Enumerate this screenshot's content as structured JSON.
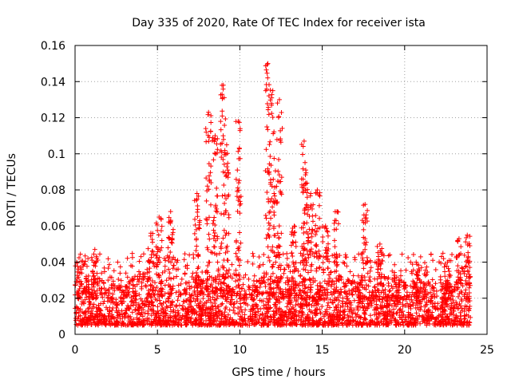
{
  "chart_data": {
    "type": "scatter",
    "title": "Day 335 of 2020, Rate Of TEC Index for receiver ista",
    "xlabel": "GPS time / hours",
    "ylabel": "ROTI / TECUs",
    "xlim": [
      0,
      25
    ],
    "ylim": [
      0,
      0.16
    ],
    "xticks": [
      0,
      5,
      10,
      15,
      20,
      25
    ],
    "xtick_labels": [
      "0",
      "5",
      "10",
      "15",
      "20",
      "25"
    ],
    "yticks": [
      0,
      0.02,
      0.04,
      0.06,
      0.08,
      0.1,
      0.12,
      0.14,
      0.16
    ],
    "ytick_labels": [
      "0",
      "0.02",
      "0.04",
      "0.06",
      "0.08",
      "0.1",
      "0.12",
      "0.14",
      "0.16"
    ],
    "grid": true,
    "marker": "+",
    "marker_color": "#ff0000",
    "series_summary": {
      "name": "ROTI",
      "x_range": [
        0,
        24
      ],
      "background_band": [
        0.005,
        0.03
      ],
      "peaks": [
        {
          "x": 0.1,
          "y": 0.04
        },
        {
          "x": 1.2,
          "y": 0.047
        },
        {
          "x": 4.6,
          "y": 0.056
        },
        {
          "x": 5.1,
          "y": 0.065
        },
        {
          "x": 5.8,
          "y": 0.068
        },
        {
          "x": 7.4,
          "y": 0.078
        },
        {
          "x": 8.1,
          "y": 0.123
        },
        {
          "x": 8.5,
          "y": 0.11
        },
        {
          "x": 9.0,
          "y": 0.138
        },
        {
          "x": 9.2,
          "y": 0.105
        },
        {
          "x": 9.9,
          "y": 0.118
        },
        {
          "x": 11.7,
          "y": 0.15
        },
        {
          "x": 12.0,
          "y": 0.135
        },
        {
          "x": 12.4,
          "y": 0.13
        },
        {
          "x": 13.3,
          "y": 0.06
        },
        {
          "x": 13.9,
          "y": 0.107
        },
        {
          "x": 14.0,
          "y": 0.091
        },
        {
          "x": 14.3,
          "y": 0.078
        },
        {
          "x": 14.7,
          "y": 0.08
        },
        {
          "x": 15.2,
          "y": 0.06
        },
        {
          "x": 15.9,
          "y": 0.068
        },
        {
          "x": 17.6,
          "y": 0.072
        },
        {
          "x": 18.5,
          "y": 0.05
        },
        {
          "x": 20.7,
          "y": 0.04
        },
        {
          "x": 22.6,
          "y": 0.04
        },
        {
          "x": 23.3,
          "y": 0.053
        },
        {
          "x": 23.8,
          "y": 0.055
        }
      ]
    }
  }
}
